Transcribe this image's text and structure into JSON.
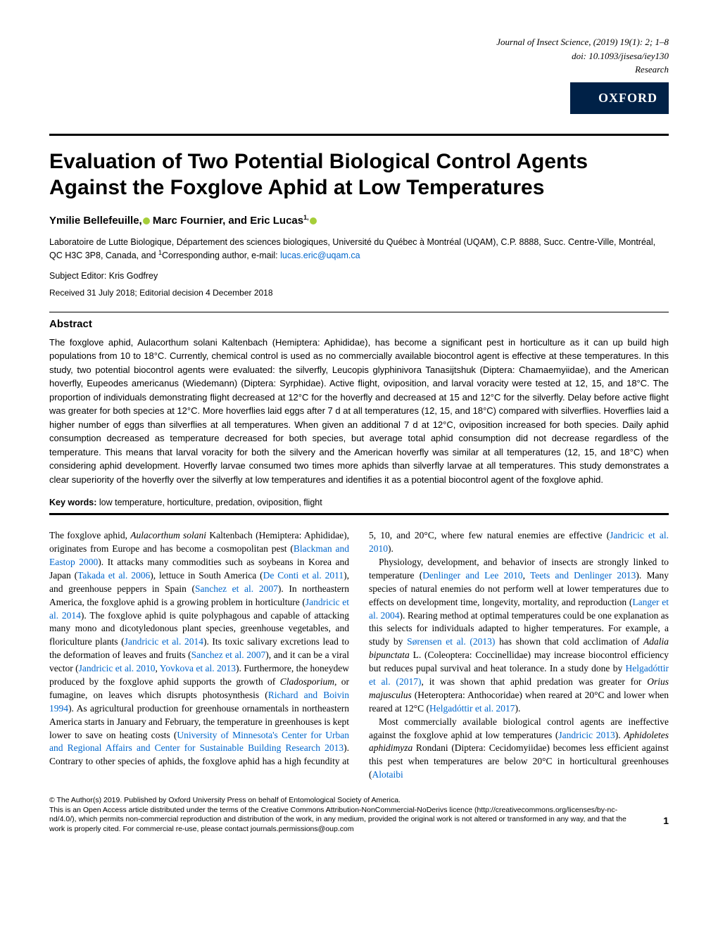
{
  "header": {
    "journal": "Journal of Insect Science",
    "citation": ", (2019) 19(1): 2; 1–8",
    "doi": "doi: 10.1093/jisesa/iey130",
    "type": "Research",
    "publisher_badge": "OXFORD"
  },
  "article": {
    "title": "Evaluation of Two Potential Biological Control Agents Against the Foxglove Aphid at Low Temperatures",
    "authors_prefix": "Ymilie Bellefeuille,",
    "authors_mid": " Marc Fournier, and Eric Lucas",
    "authors_sup": "1,",
    "affiliation": "Laboratoire de Lutte Biologique, Département des sciences biologiques, Université du Québec à Montréal (UQAM), C.P. 8888, Succ. Centre-Ville, Montréal, QC H3C 3P8, Canada, and ",
    "affiliation_sup": "1",
    "affiliation_corr": "Corresponding author, e-mail: ",
    "email": "lucas.eric@uqam.ca",
    "subject_editor": "Subject Editor: Kris Godfrey",
    "dates": "Received 31 July 2018; Editorial decision 4 December 2018",
    "abstract_heading": "Abstract",
    "abstract": "The foxglove aphid, Aulacorthum solani Kaltenbach (Hemiptera: Aphididae), has become a significant pest in horticulture as it can up build high populations from 10 to 18°C. Currently, chemical control is used as no commercially available biocontrol agent is effective at these temperatures. In this study, two potential biocontrol agents were evaluated: the silverfly, Leucopis glyphinivora Tanasijtshuk (Diptera: Chamaemyiidae), and the American hoverfly, Eupeodes americanus (Wiedemann) (Diptera: Syrphidae). Active flight, oviposition, and larval voracity were tested at 12, 15, and 18°C. The proportion of individuals demonstrating flight decreased at 12°C for the hoverfly and decreased at 15 and 12°C for the silverfly. Delay before active flight was greater for both species at 12°C. More hoverflies laid eggs after 7 d at all temperatures (12, 15, and 18°C) compared with silverflies. Hoverflies laid a higher number of eggs than silverflies at all temperatures. When given an additional 7 d at 12°C, oviposition increased for both species. Daily aphid consumption decreased as temperature decreased for both species, but average total aphid consumption did not decrease regardless of the temperature. This means that larval voracity for both the silvery and the American hoverfly was similar at all temperatures (12, 15, and 18°C) when considering aphid development. Hoverfly larvae consumed two times more aphids than silverfly larvae at all temperatures. This study demonstrates a clear superiority of the hoverfly over the silverfly at low temperatures and identifies it as a potential biocontrol agent of the foxglove aphid.",
    "keywords_label": "Key words:",
    "keywords": "  low temperature, horticulture, predation, oviposition, flight"
  },
  "body": {
    "para1_a": "The foxglove aphid, ",
    "para1_i1": "Aulacorthum solani",
    "para1_b": " Kaltenbach (Hemiptera: Aphididae), originates from Europe and has become a cosmopolitan pest (",
    "ref1": "Blackman and Eastop 2000",
    "para1_c": "). It attacks many commodities such as soybeans in Korea and Japan (",
    "ref2": "Takada et al. 2006",
    "para1_d": "), lettuce in South America (",
    "ref3": "De Conti et al. 2011",
    "para1_e": "), and greenhouse peppers in Spain (",
    "ref4": "Sanchez et al. 2007",
    "para1_f": "). In northeastern America, the foxglove aphid is a growing problem in horticulture (",
    "ref5": "Jandricic et al. 2014",
    "para1_g": "). The foxglove aphid is quite polyphagous and capable of attacking many mono and dicotyledonous plant species, greenhouse vegetables, and floriculture plants (",
    "ref6": "Jandricic et al. 2014",
    "para1_h": "). Its toxic salivary excretions lead to the deformation of leaves and fruits (",
    "ref7": "Sanchez et al. 2007",
    "para1_i": "), and it can be a viral vector (",
    "ref8": "Jandricic et al. 2010",
    "para1_j": ", ",
    "ref9": "Yovkova et al. 2013",
    "para1_k": "). Furthermore, the honeydew produced by the foxglove aphid supports the growth of ",
    "para1_i2": "Cladosporium",
    "para1_l": ", or fumagine, on leaves which disrupts photosynthesis (",
    "ref10": "Richard and Boivin 1994",
    "para1_m": "). As agricultural production for greenhouse ornamentals in northeastern America starts in January and February, the temperature in greenhouses is kept lower to save on heating costs (",
    "ref11": "University of Minnesota's Center for Urban and Regional Affairs and Center for Sustainable Building Research 2013",
    "para1_n": "). Contrary to other species of aphids, the foxglove aphid has a high fecundity at 5, 10, and 20°C, where few natural enemies are effective (",
    "ref12": "Jandricic et al. 2010",
    "para1_o": ").",
    "para2_a": "Physiology, development, and behavior of insects are strongly linked to temperature (",
    "ref13": "Denlinger and Lee 2010",
    "para2_b": ", ",
    "ref14": "Teets and Denlinger 2013",
    "para2_c": "). Many species of natural enemies do not perform well at lower temperatures due to effects on development time, longevity, mortality, and reproduction (",
    "ref15": "Langer et al. 2004",
    "para2_d": "). Rearing method at optimal temperatures could be one explanation as this selects for individuals adapted to higher temperatures. For example, a study by ",
    "ref16": "Sørensen et al. (2013)",
    "para2_e": " has shown that cold acclimation of ",
    "para2_i1": "Adalia bipunctata",
    "para2_f": " L. (Coleoptera: Coccinellidae) may increase biocontrol efficiency but reduces pupal survival and heat tolerance. In a study done by ",
    "ref17": "Helgadóttir et al. (2017)",
    "para2_g": ", it was shown that aphid predation was greater for ",
    "para2_i2": "Orius majusculus",
    "para2_h": " (Heteroptera: Anthocoridae) when reared at 20°C and lower when reared at 12°C (",
    "ref18": "Helgadóttir et al. 2017",
    "para2_i": ").",
    "para3_a": "Most commercially available biological control agents are ineffective against the foxglove aphid at low temperatures (",
    "ref19": "Jandricic 2013",
    "para3_b": "). ",
    "para3_i1": "Aphidoletes aphidimyza",
    "para3_c": " Rondani (Diptera: Cecidomyiidae) becomes less efficient against this pest when temperatures are below 20°C in horticultural greenhouses (",
    "ref20": "Alotaibi"
  },
  "footer": {
    "copyright": "© The Author(s) 2019. Published by Oxford University Press on behalf of Entomological Society of America.",
    "license": "This is an Open Access article distributed under the terms of the Creative Commons Attribution-NonCommercial-NoDerivs licence (http://creativecommons.org/licenses/by-nc-nd/4.0/), which permits non-commercial reproduction and distribution of the work, in any medium, provided the original work is not altered or transformed in any way, and that the work is properly cited. For commercial re-use, please contact journals.permissions@oup.com",
    "page_number": "1"
  },
  "colors": {
    "oxford_bg": "#002147",
    "link": "#0066cc",
    "orcid": "#a6ce39",
    "text": "#000000",
    "background": "#ffffff"
  },
  "typography": {
    "title_fontsize": 30,
    "body_fontsize": 13.5,
    "abstract_fontsize": 13,
    "footer_fontsize": 10.5
  }
}
